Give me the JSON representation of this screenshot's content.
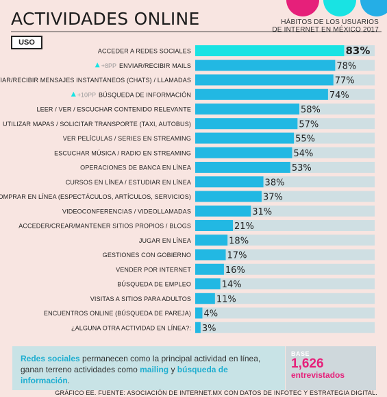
{
  "header": {
    "title": "ACTIVIDADES ONLINE",
    "subtitle_line1": "HÁBITOS DE LOS USUARIOS",
    "subtitle_line2": "DE INTERNET EN MÉXICO 2017",
    "section_tag": "USO"
  },
  "decor": {
    "circle_colors": [
      "#e6207a",
      "#19e3e3",
      "#25aee6"
    ]
  },
  "colors": {
    "bar_fill": "#22b8e3",
    "bar_top": "#19e3e3",
    "bar_track": "#cfdfe3",
    "pp_marker": "#19e3e3"
  },
  "chart_data": {
    "type": "bar",
    "orientation": "horizontal",
    "xlim": [
      0,
      100
    ],
    "categories": [
      "ACCEDER A REDES SOCIALES",
      "ENVIAR/RECIBIR MAILS",
      "ENVIAR/RECIBIR MENSAJES INSTANTÁNEOS (CHATS) / LLAMADAS",
      "BÚSQUEDA DE INFORMACIÓN",
      "LEER / VER / ESCUCHAR CONTENIDO RELEVANTE",
      "UTILIZAR MAPAS / SOLICITAR TRANSPORTE (TAXI, AUTOBUS)",
      "VER PELÍCULAS / SERIES EN STREAMING",
      "ESCUCHAR MÚSICA / RADIO EN STREAMING",
      "OPERACIONES DE BANCA EN LÍNEA",
      "CURSOS EN LÍNEA / ESTUDIAR EN LÍNEA",
      "COMPRAR EN LÍNEA (ESPECTÁCULOS, ARTÍCULOS, SERVICIOS)",
      "VIDEOCONFERENCIAS / VIDEOLLAMADAS",
      "ACCEDER/CREAR/MANTENER SITIOS PROPIOS / BLOGS",
      "JUGAR EN LÍNEA",
      "GESTIONES CON GOBIERNO",
      "VENDER POR INTERNET",
      "BÚSQUEDA DE EMPLEO",
      "VISITAS A SITIOS PARA ADULTOS",
      "ENCUENTROS ONLINE (BÚSQUEDA DE PAREJA)",
      "¿ALGUNA OTRA ACTIVIDAD EN LÍNEA?:"
    ],
    "values": [
      83,
      78,
      77,
      74,
      58,
      57,
      55,
      54,
      53,
      38,
      37,
      31,
      21,
      18,
      17,
      16,
      14,
      11,
      4,
      3
    ],
    "value_labels": [
      "83%",
      "78%",
      "77%",
      "74%",
      "58%",
      "57%",
      "55%",
      "54%",
      "53%",
      "38%",
      "37%",
      "31%",
      "21%",
      "18%",
      "17%",
      "16%",
      "14%",
      "11%",
      "4%",
      "3%"
    ],
    "annotations": [
      {
        "category_index": 1,
        "text": "+8PP"
      },
      {
        "category_index": 3,
        "text": "+10PP"
      }
    ]
  },
  "callout": {
    "hl1": "Redes sociales",
    "t1": " permanecen como la principal actividad en línea, ganan terreno actividades como ",
    "hl2": "mailing",
    "t2": " y ",
    "hl3": "búsqueda de información",
    "t3": "."
  },
  "base": {
    "label": "BASE",
    "number": "1,626",
    "sub": "entrevistados"
  },
  "footer": "GRÁFICO EE. FUENTE: ASOCIACIÓN DE INTERNET.MX CON DATOS DE INFOTEC Y ESTRATEGIA DIGITAL."
}
